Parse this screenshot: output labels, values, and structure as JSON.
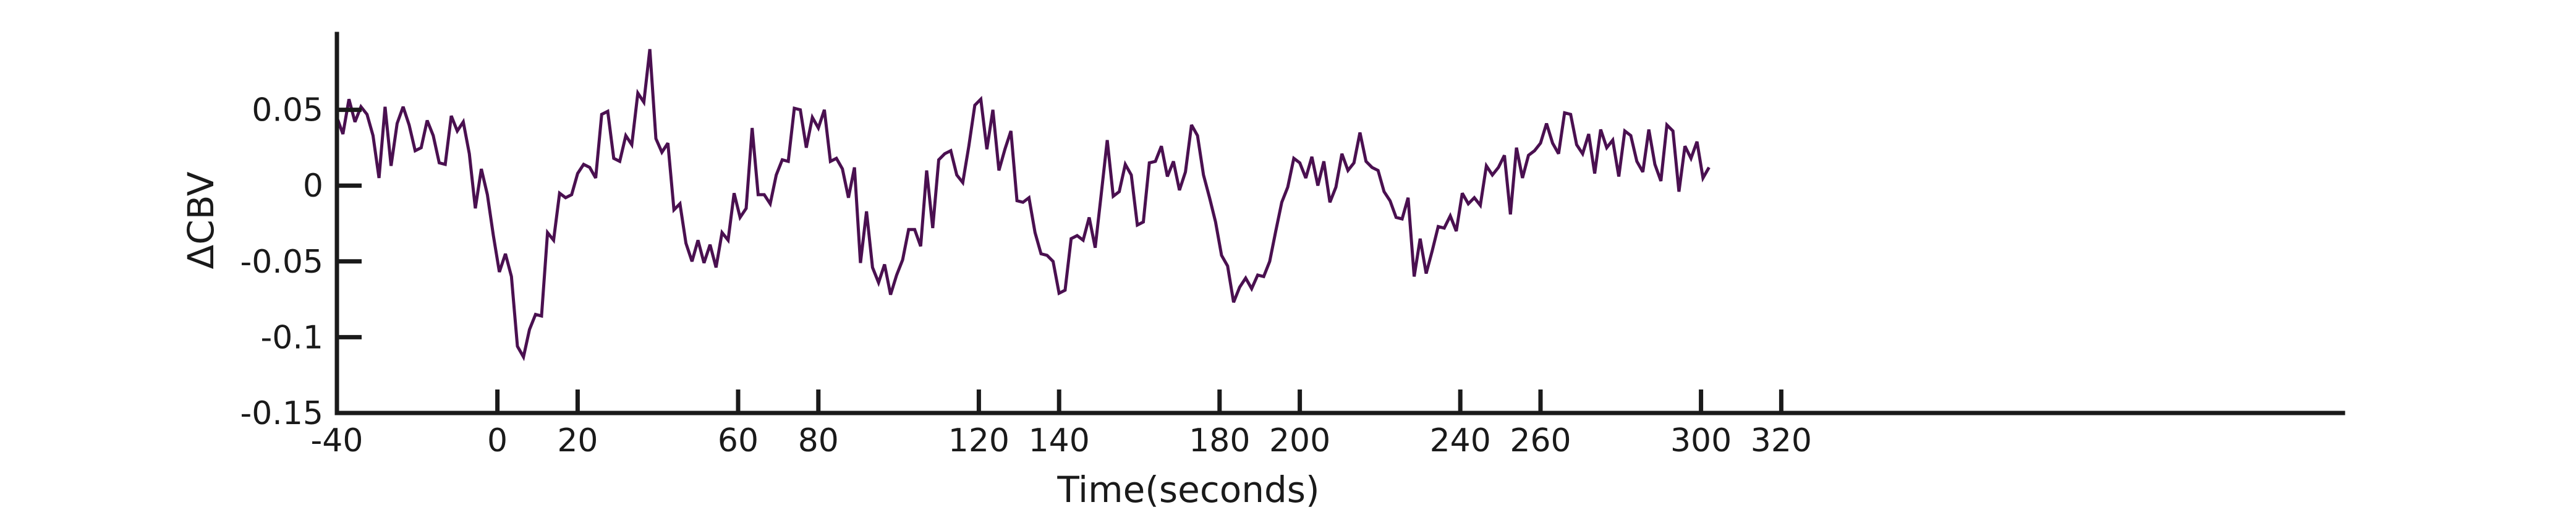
{
  "chart_data": {
    "type": "line",
    "title": "",
    "xlabel": "Time(seconds)",
    "ylabel": "ΔCBV",
    "xlim": [
      -40,
      460
    ],
    "ylim": [
      -0.15,
      0.1
    ],
    "grid": false,
    "x_ticks": [
      -40,
      0,
      20,
      60,
      80,
      120,
      140,
      180,
      200,
      240,
      260,
      300,
      320
    ],
    "x_tick_labels": [
      "-40",
      "0",
      "20",
      "60",
      "80",
      "120",
      "140",
      "180",
      "200",
      "240",
      "260",
      "300",
      "320"
    ],
    "y_ticks": [
      0.05,
      0,
      -0.05,
      -0.1,
      -0.15
    ],
    "y_tick_labels": [
      "0.05",
      "0",
      "-0.05",
      "-0.1",
      "-0.15"
    ],
    "colors": {
      "line": "#4a1050",
      "axis": "#1a1a1a"
    },
    "series": [
      {
        "x_start": -40,
        "x_step": 1.5,
        "values": [
          0.045,
          0.034,
          0.057,
          0.042,
          0.052,
          0.047,
          0.033,
          0.005,
          0.052,
          0.013,
          0.041,
          0.052,
          0.04,
          0.023,
          0.025,
          0.043,
          0.033,
          0.015,
          0.014,
          0.046,
          0.036,
          0.042,
          0.021,
          -0.015,
          0.011,
          -0.006,
          -0.033,
          -0.057,
          -0.045,
          -0.06,
          -0.106,
          -0.113,
          -0.095,
          -0.085,
          -0.086,
          -0.031,
          -0.036,
          -0.005,
          -0.008,
          -0.006,
          0.008,
          0.014,
          0.012,
          0.005,
          0.047,
          0.049,
          0.018,
          0.016,
          0.033,
          0.027,
          0.061,
          0.055,
          0.09,
          0.031,
          0.022,
          0.028,
          -0.016,
          -0.012,
          -0.038,
          -0.05,
          -0.036,
          -0.051,
          -0.039,
          -0.054,
          -0.031,
          -0.036,
          -0.005,
          -0.021,
          -0.015,
          0.038,
          -0.006,
          -0.006,
          -0.012,
          0.007,
          0.017,
          0.016,
          0.051,
          0.05,
          0.025,
          0.045,
          0.038,
          0.05,
          0.016,
          0.018,
          0.011,
          -0.008,
          0.012,
          -0.051,
          -0.017,
          -0.054,
          -0.064,
          -0.052,
          -0.072,
          -0.059,
          -0.049,
          -0.029,
          -0.029,
          -0.04,
          0.01,
          -0.028,
          0.017,
          0.021,
          0.023,
          0.007,
          0.002,
          0.026,
          0.053,
          0.057,
          0.024,
          0.05,
          0.01,
          0.024,
          0.036,
          -0.01,
          -0.011,
          -0.008,
          -0.031,
          -0.045,
          -0.046,
          -0.05,
          -0.071,
          -0.069,
          -0.035,
          -0.033,
          -0.036,
          -0.021,
          -0.041,
          -0.006,
          0.03,
          -0.007,
          -0.004,
          0.014,
          0.007,
          -0.026,
          -0.024,
          0.015,
          0.016,
          0.026,
          0.006,
          0.016,
          -0.003,
          0.009,
          0.04,
          0.033,
          0.007,
          -0.008,
          -0.024,
          -0.046,
          -0.053,
          -0.077,
          -0.067,
          -0.061,
          -0.068,
          -0.059,
          -0.06,
          -0.05,
          -0.03,
          -0.011,
          -0.001,
          0.018,
          0.015,
          0.005,
          0.019,
          0.0,
          0.016,
          -0.011,
          -0.001,
          0.021,
          0.01,
          0.015,
          0.035,
          0.016,
          0.012,
          0.01,
          -0.004,
          -0.01,
          -0.021,
          -0.022,
          -0.008,
          -0.06,
          -0.035,
          -0.058,
          -0.043,
          -0.027,
          -0.028,
          -0.02,
          -0.03,
          -0.005,
          -0.012,
          -0.008,
          -0.013,
          0.013,
          0.007,
          0.012,
          0.02,
          -0.019,
          0.025,
          0.005,
          0.02,
          0.023,
          0.028,
          0.041,
          0.028,
          0.021,
          0.048,
          0.047,
          0.027,
          0.021,
          0.034,
          0.008,
          0.037,
          0.025,
          0.03,
          0.006,
          0.036,
          0.033,
          0.016,
          0.009,
          0.037,
          0.014,
          0.003,
          0.04,
          0.036,
          -0.004,
          0.026,
          0.018,
          0.029,
          0.005,
          0.012
        ]
      }
    ]
  }
}
